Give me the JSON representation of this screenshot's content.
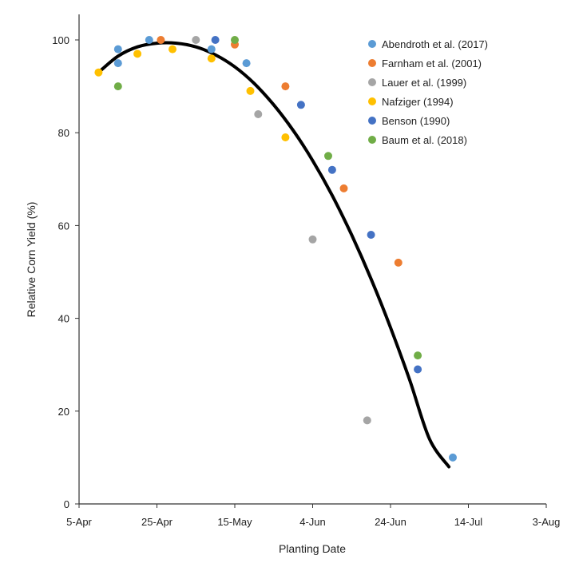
{
  "chart_data": {
    "type": "scatter",
    "title": "",
    "xlabel": "Planting Date",
    "ylabel": "Relative Corn Yield (%)",
    "x_unit": "date",
    "xlim": [
      "2024-04-05",
      "2024-08-03"
    ],
    "ylim": [
      0,
      100
    ],
    "x_ticks": [
      {
        "date": "2024-04-05",
        "label": "5-Apr"
      },
      {
        "date": "2024-04-25",
        "label": "25-Apr"
      },
      {
        "date": "2024-05-15",
        "label": "15-May"
      },
      {
        "date": "2024-06-04",
        "label": "4-Jun"
      },
      {
        "date": "2024-06-24",
        "label": "24-Jun"
      },
      {
        "date": "2024-07-14",
        "label": "14-Jul"
      },
      {
        "date": "2024-08-03",
        "label": "3-Aug"
      }
    ],
    "y_ticks": [
      0,
      20,
      40,
      60,
      80,
      100
    ],
    "grid": false,
    "legend_position": "top-right",
    "series": [
      {
        "name": "Abendroth et al. (2017)",
        "color": "#5b9bd5",
        "points": [
          {
            "x": "2024-04-15",
            "y": 98
          },
          {
            "x": "2024-04-15",
            "y": 95
          },
          {
            "x": "2024-04-23",
            "y": 100
          },
          {
            "x": "2024-05-09",
            "y": 98
          },
          {
            "x": "2024-05-18",
            "y": 95
          },
          {
            "x": "2024-07-10",
            "y": 10
          }
        ]
      },
      {
        "name": "Farnham et al. (2001)",
        "color": "#ed7d31",
        "points": [
          {
            "x": "2024-04-26",
            "y": 100
          },
          {
            "x": "2024-05-15",
            "y": 99
          },
          {
            "x": "2024-05-28",
            "y": 90
          },
          {
            "x": "2024-06-12",
            "y": 68
          },
          {
            "x": "2024-06-26",
            "y": 52
          }
        ]
      },
      {
        "name": "Lauer et al. (1999)",
        "color": "#a5a5a5",
        "points": [
          {
            "x": "2024-05-05",
            "y": 100
          },
          {
            "x": "2024-05-21",
            "y": 84
          },
          {
            "x": "2024-06-04",
            "y": 57
          },
          {
            "x": "2024-06-18",
            "y": 18
          }
        ]
      },
      {
        "name": "Nafziger (1994)",
        "color": "#ffc000",
        "points": [
          {
            "x": "2024-04-10",
            "y": 93
          },
          {
            "x": "2024-04-20",
            "y": 97
          },
          {
            "x": "2024-04-29",
            "y": 98
          },
          {
            "x": "2024-05-09",
            "y": 96
          },
          {
            "x": "2024-05-19",
            "y": 89
          },
          {
            "x": "2024-05-28",
            "y": 79
          }
        ]
      },
      {
        "name": "Benson (1990)",
        "color": "#4472c4",
        "points": [
          {
            "x": "2024-05-10",
            "y": 100
          },
          {
            "x": "2024-06-01",
            "y": 86
          },
          {
            "x": "2024-06-09",
            "y": 72
          },
          {
            "x": "2024-06-19",
            "y": 58
          },
          {
            "x": "2024-07-01",
            "y": 29
          }
        ]
      },
      {
        "name": "Baum et al. (2018)",
        "color": "#70ad47",
        "points": [
          {
            "x": "2024-04-15",
            "y": 90
          },
          {
            "x": "2024-05-15",
            "y": 100
          },
          {
            "x": "2024-06-08",
            "y": 75
          },
          {
            "x": "2024-07-01",
            "y": 32
          }
        ]
      }
    ],
    "trend_line": {
      "type": "polynomial-2",
      "color": "#000000",
      "x_range": [
        "2024-04-10",
        "2024-07-09"
      ],
      "points": [
        {
          "x": "2024-04-10",
          "y": 93
        },
        {
          "x": "2024-04-15",
          "y": 96.5
        },
        {
          "x": "2024-04-20",
          "y": 98.5
        },
        {
          "x": "2024-04-25",
          "y": 99.3
        },
        {
          "x": "2024-04-30",
          "y": 99.3
        },
        {
          "x": "2024-05-05",
          "y": 98.5
        },
        {
          "x": "2024-05-10",
          "y": 96.8
        },
        {
          "x": "2024-05-15",
          "y": 94.2
        },
        {
          "x": "2024-05-20",
          "y": 90.6
        },
        {
          "x": "2024-05-25",
          "y": 86
        },
        {
          "x": "2024-05-30",
          "y": 80.5
        },
        {
          "x": "2024-06-04",
          "y": 74
        },
        {
          "x": "2024-06-09",
          "y": 66.5
        },
        {
          "x": "2024-06-14",
          "y": 58
        },
        {
          "x": "2024-06-19",
          "y": 48.5
        },
        {
          "x": "2024-06-24",
          "y": 38
        },
        {
          "x": "2024-06-29",
          "y": 26.5
        },
        {
          "x": "2024-07-04",
          "y": 14
        },
        {
          "x": "2024-07-09",
          "y": 8
        }
      ]
    }
  }
}
